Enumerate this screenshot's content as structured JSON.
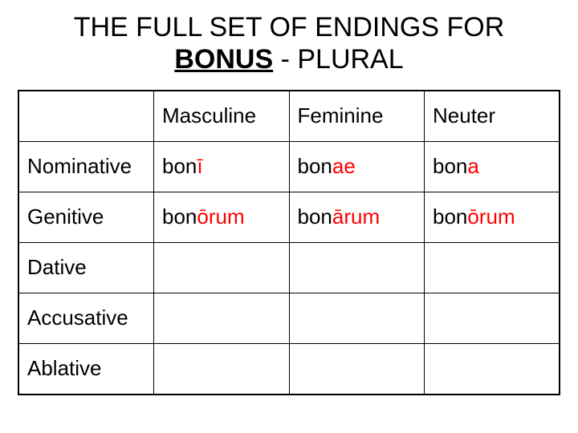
{
  "title_pre": "THE FULL SET OF ENDINGS FOR",
  "title_bonus": "BONUS",
  "title_post": " - PLURAL",
  "columns": {
    "masc": "Masculine",
    "fem": "Feminine",
    "neut": "Neuter"
  },
  "cases": {
    "nom": "Nominative",
    "gen": "Genitive",
    "dat": "Dative",
    "acc": "Accusative",
    "abl": "Ablative"
  },
  "stem": "bon",
  "endings": {
    "nom": {
      "masc": "ī",
      "fem": "ae",
      "neut": "a"
    },
    "gen": {
      "masc": "ōrum",
      "fem": "ārum",
      "neut": "ōrum"
    },
    "dat": {
      "masc": "",
      "fem": "",
      "neut": ""
    },
    "acc": {
      "masc": "",
      "fem": "",
      "neut": ""
    },
    "abl": {
      "masc": "",
      "fem": "",
      "neut": ""
    }
  },
  "colors": {
    "stem": "#000000",
    "ending": "#ff0000",
    "border": "#000000",
    "background": "#ffffff",
    "text": "#000000"
  },
  "fontsize": {
    "title": 34,
    "cell": 26
  },
  "case_order": [
    "nom",
    "gen",
    "dat",
    "acc",
    "abl"
  ],
  "gender_order": [
    "masc",
    "fem",
    "neut"
  ]
}
